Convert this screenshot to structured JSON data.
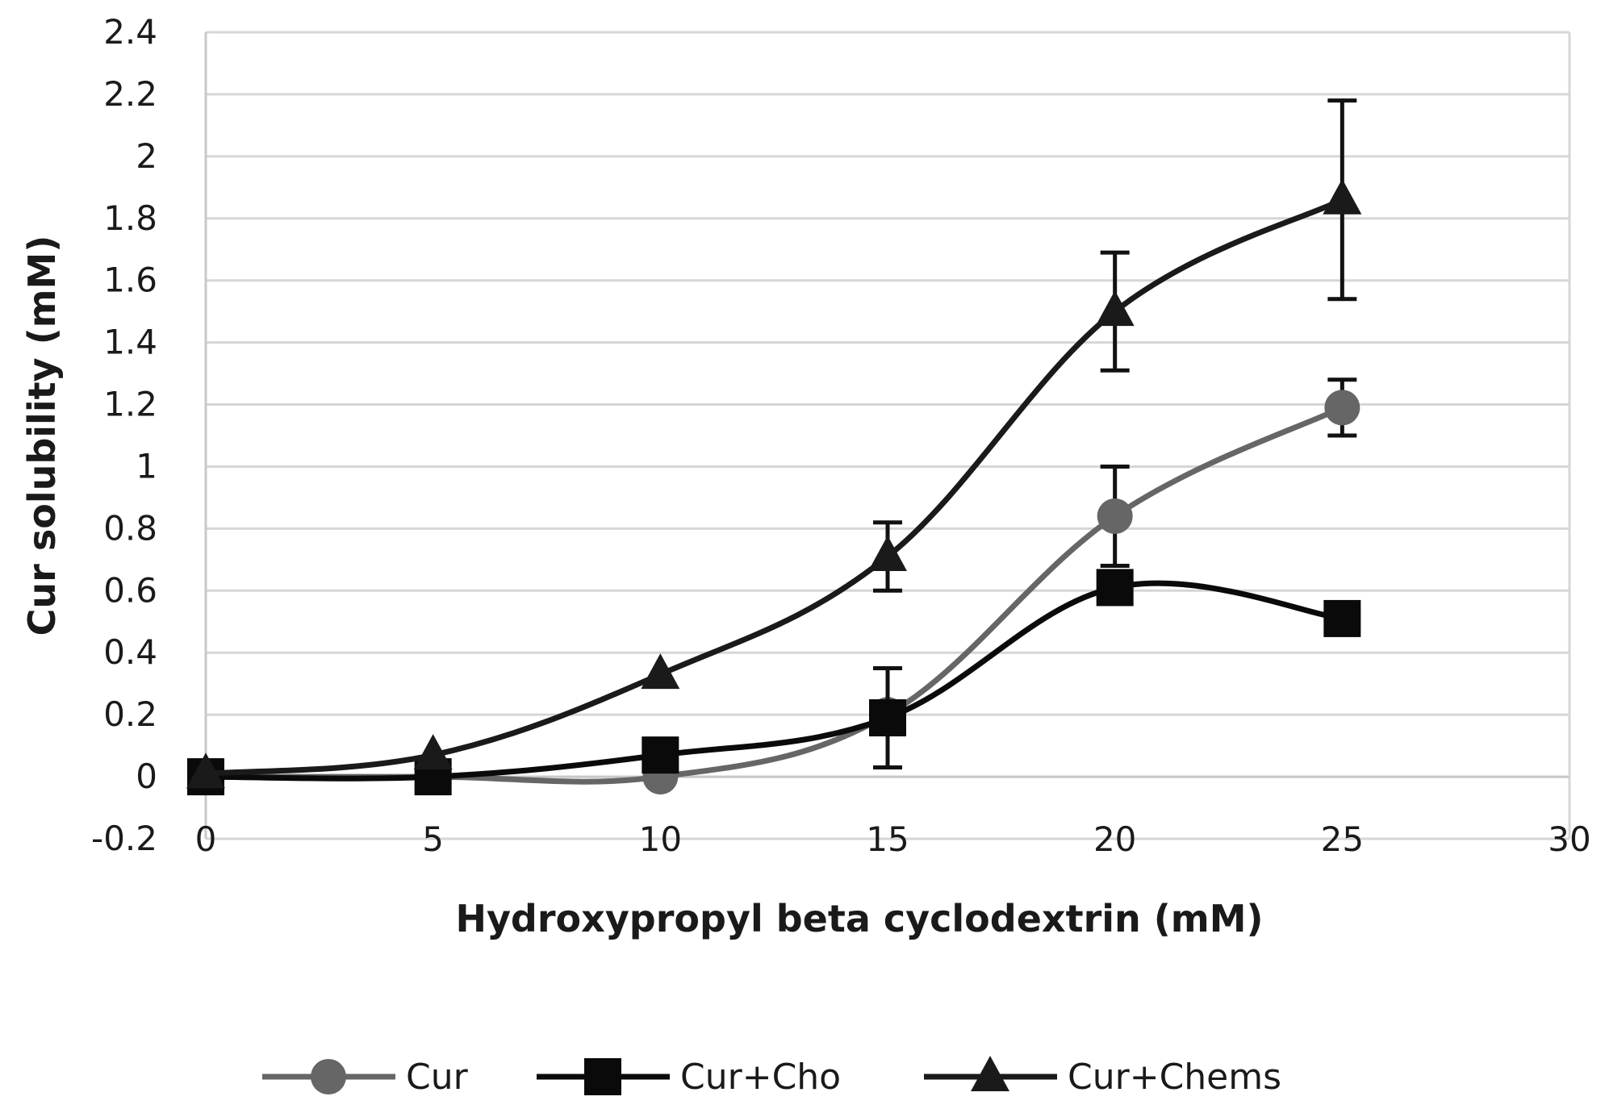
{
  "chart_data": {
    "type": "line",
    "title": "",
    "xlabel": "Hydroxypropyl beta cyclodextrin (mM)",
    "ylabel": "Cur solubility (mM)",
    "xlim": [
      0,
      30
    ],
    "ylim": [
      -0.2,
      2.4
    ],
    "xticks": [
      0,
      5,
      10,
      15,
      20,
      25,
      30
    ],
    "yticks": [
      -0.2,
      0,
      0.2,
      0.4,
      0.6,
      0.8,
      1,
      1.2,
      1.4,
      1.6,
      1.8,
      2,
      2.2,
      2.4
    ],
    "x_tick_labels": [
      "0",
      "5",
      "10",
      "15",
      "20",
      "25",
      "30"
    ],
    "y_tick_labels": [
      "-0.2",
      "0",
      "0.2",
      "0.4",
      "0.6",
      "0.8",
      "1",
      "1.2",
      "1.4",
      "1.6",
      "1.8",
      "2",
      "2.2",
      "2.4"
    ],
    "grid": true,
    "legend_position": "bottom",
    "series": [
      {
        "name": "Cur",
        "marker": "circle",
        "color": "#666666",
        "x": [
          0,
          5,
          10,
          15,
          20,
          25
        ],
        "values": [
          0,
          0,
          0,
          0.2,
          0.84,
          1.19
        ],
        "errors": [
          0,
          0,
          0,
          0,
          0.16,
          0.09
        ]
      },
      {
        "name": "Cur+Cho",
        "marker": "square",
        "color": "#0a0a0a",
        "x": [
          0,
          5,
          10,
          15,
          20,
          25
        ],
        "values": [
          0,
          0,
          0.07,
          0.19,
          0.61,
          0.51
        ],
        "errors": [
          0,
          0,
          0,
          0.16,
          0,
          0
        ]
      },
      {
        "name": "Cur+Chems",
        "marker": "triangle",
        "color": "#1a1a1a",
        "x": [
          0,
          5,
          10,
          15,
          20,
          25
        ],
        "values": [
          0.01,
          0.07,
          0.33,
          0.71,
          1.5,
          1.86
        ],
        "errors": [
          0,
          0,
          0,
          0.11,
          0.19,
          0.32
        ]
      }
    ]
  }
}
